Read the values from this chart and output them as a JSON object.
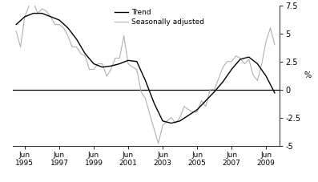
{
  "title": "",
  "ylabel_right": "%",
  "ylim": [
    -5.0,
    7.5
  ],
  "yticks": [
    -5.0,
    -2.5,
    0.0,
    2.5,
    5.0,
    7.5
  ],
  "xtick_labels": [
    "Jun\n1995",
    "Jun\n1997",
    "Jun\n1999",
    "Jun\n2001",
    "Jun\n2003",
    "Jun\n2005",
    "Jun\n2007",
    "Jun\n2009"
  ],
  "xtick_positions": [
    1995,
    1997,
    1999,
    2001,
    2003,
    2005,
    2007,
    2009
  ],
  "legend_entries": [
    "Trend",
    "Seasonally adjusted"
  ],
  "trend_color": "#000000",
  "seasonal_color": "#b0b0b0",
  "trend_linewidth": 1.0,
  "seasonal_linewidth": 0.8,
  "background_color": "#ffffff",
  "xlim": [
    1994.3,
    2009.8
  ],
  "trend_x": [
    1994.5,
    1995.0,
    1995.5,
    1996.0,
    1996.5,
    1997.0,
    1997.5,
    1998.0,
    1998.5,
    1999.0,
    1999.5,
    2000.0,
    2000.5,
    2001.0,
    2001.5,
    2002.0,
    2002.5,
    2003.0,
    2003.5,
    2004.0,
    2004.5,
    2005.0,
    2005.5,
    2006.0,
    2006.5,
    2007.0,
    2007.5,
    2008.0,
    2008.5,
    2009.0,
    2009.5
  ],
  "trend_y": [
    5.8,
    6.5,
    6.8,
    6.8,
    6.5,
    6.2,
    5.5,
    4.5,
    3.2,
    2.3,
    2.0,
    2.1,
    2.3,
    2.6,
    2.5,
    0.8,
    -1.2,
    -2.8,
    -3.0,
    -2.8,
    -2.3,
    -1.8,
    -1.0,
    -0.2,
    0.7,
    1.8,
    2.7,
    2.9,
    2.3,
    1.2,
    -0.3
  ],
  "seasonal_x": [
    1994.5,
    1994.75,
    1995.0,
    1995.25,
    1995.5,
    1995.75,
    1996.0,
    1996.25,
    1996.5,
    1996.75,
    1997.0,
    1997.25,
    1997.5,
    1997.75,
    1998.0,
    1998.25,
    1998.5,
    1998.75,
    1999.0,
    1999.25,
    1999.5,
    1999.75,
    2000.0,
    2000.25,
    2000.5,
    2000.75,
    2001.0,
    2001.25,
    2001.5,
    2001.75,
    2002.0,
    2002.25,
    2002.5,
    2002.75,
    2003.0,
    2003.25,
    2003.5,
    2003.75,
    2004.0,
    2004.25,
    2004.5,
    2004.75,
    2005.0,
    2005.25,
    2005.5,
    2005.75,
    2006.0,
    2006.25,
    2006.5,
    2006.75,
    2007.0,
    2007.25,
    2007.5,
    2007.75,
    2008.0,
    2008.25,
    2008.5,
    2008.75,
    2009.0,
    2009.25,
    2009.5
  ],
  "seasonal_y": [
    5.2,
    3.8,
    6.5,
    7.5,
    7.8,
    6.8,
    7.2,
    7.0,
    6.5,
    5.8,
    5.8,
    5.5,
    4.8,
    3.8,
    3.8,
    3.2,
    3.0,
    1.8,
    1.8,
    2.3,
    2.3,
    1.2,
    1.8,
    2.8,
    2.8,
    4.8,
    2.3,
    2.0,
    1.8,
    -0.2,
    -0.8,
    -2.2,
    -3.5,
    -4.8,
    -3.2,
    -2.8,
    -2.5,
    -3.0,
    -2.5,
    -1.5,
    -1.8,
    -2.0,
    -2.0,
    -1.0,
    -1.5,
    0.0,
    0.0,
    1.0,
    2.0,
    2.5,
    2.5,
    3.0,
    2.8,
    2.3,
    2.7,
    1.3,
    0.8,
    2.3,
    4.3,
    5.5,
    4.0
  ]
}
